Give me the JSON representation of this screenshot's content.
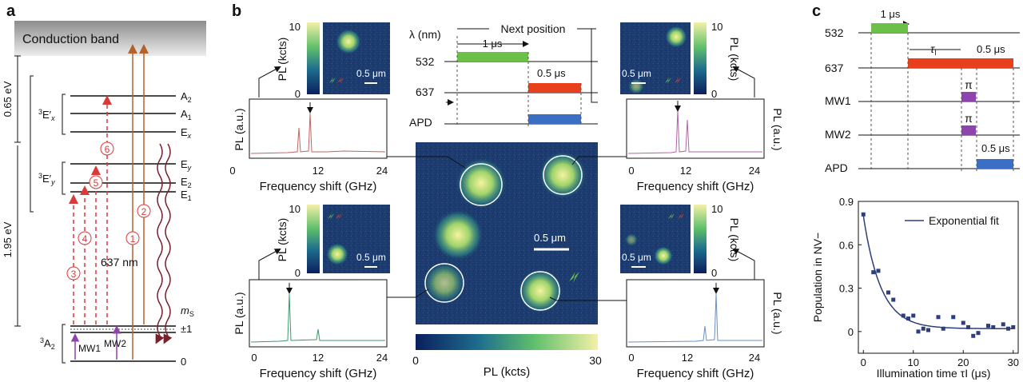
{
  "panel_a": {
    "letter": "a",
    "conduction_band": "Conduction band",
    "gap_065": "0.65 eV",
    "gap_195": "1.95 eV",
    "level_A2": "A",
    "level_A2_sub": "2",
    "level_A1": "A",
    "level_A1_sub": "1",
    "level_Ex": "E",
    "level_Ex_sub": "x",
    "level_Ey": "E",
    "level_Ey_sub": "y",
    "level_E2": "E",
    "level_E2_sub": "2",
    "level_E1": "E",
    "level_E1_sub": "1",
    "state_3Ex": "E′",
    "state_3Ex_sub": "x",
    "state_3Ey": "E′",
    "state_3Ey_sub": "y",
    "state_3A2": "A",
    "state_3A2_sub": "2",
    "sup3": "3",
    "ms": "m",
    "ms_sub": "S",
    "pm1": "±1",
    "zero": "0",
    "mw1": "MW1",
    "mw2": "MW2",
    "wavelength": "637 nm",
    "num1": "1",
    "num2": "2",
    "num3": "3",
    "num4": "4",
    "num5": "5",
    "num6": "6"
  },
  "panel_b": {
    "letter": "b",
    "lambda_label": "λ (nm)",
    "next_position": "Next position",
    "dur_1us": "1 μs",
    "dur_05us": "0.5 μs",
    "row_532": "532",
    "row_637": "637",
    "row_apd": "APD",
    "pl_kcts": "PL (kcts)",
    "pl_au": "PL (a.u.)",
    "freq_shift": "Frequency shift (GHz)",
    "tick0": "0",
    "tick12": "12",
    "tick24": "24",
    "cb_max10": "10",
    "cb_min0": "0",
    "scale_05um": "0.5 μm",
    "main_cb_min": "0",
    "main_cb_max": "30",
    "main_cb_label": "PL (kcts)"
  },
  "panel_c": {
    "letter": "c",
    "dur_1us": "1 μs",
    "tau_label": "τ",
    "tau_sub": "I",
    "dur_05us": "0.5 μs",
    "row_532": "532",
    "row_637": "637",
    "row_mw1": "MW1",
    "row_mw2": "MW2",
    "row_apd": "APD",
    "pi1": "π",
    "pi2": "π",
    "dur_05us_apd": "0.5 μs"
  },
  "colors": {
    "green": "#6cc04a",
    "red": "#e8401c",
    "purple": "#8e44ad",
    "blue": "#3a6fc4",
    "laser_red": "#d93a3a",
    "navy": "#2d3e7a",
    "map_bg": "#1d3b6e"
  },
  "chart_data": {
    "type": "scatter",
    "title": "",
    "xlabel": "Illumination time τI (μs)",
    "ylabel": "Population in NV−",
    "xlim": [
      -1,
      31
    ],
    "ylim": [
      -0.15,
      0.9
    ],
    "xticks": [
      "0",
      "10",
      "20",
      "30"
    ],
    "yticks": [
      "0",
      "0.3",
      "0.6",
      "0.9"
    ],
    "legend_label": "Exponential fit",
    "legend_position": "top-right",
    "points": {
      "x": [
        0,
        2,
        3,
        5,
        6,
        8,
        9,
        10,
        11,
        12,
        13,
        15,
        16,
        18,
        20,
        21,
        22,
        23,
        25,
        26,
        28,
        29,
        30
      ],
      "y": [
        0.81,
        0.41,
        0.42,
        0.27,
        0.22,
        0.11,
        0.09,
        0.11,
        0.0,
        0.02,
        0.01,
        0.1,
        0.02,
        0.1,
        0.06,
        0.03,
        -0.03,
        -0.01,
        0.04,
        0.03,
        0.05,
        0.02,
        0.03
      ]
    },
    "fit": {
      "amplitude": 0.78,
      "tau_us": 3.5,
      "offset": 0.02
    }
  }
}
